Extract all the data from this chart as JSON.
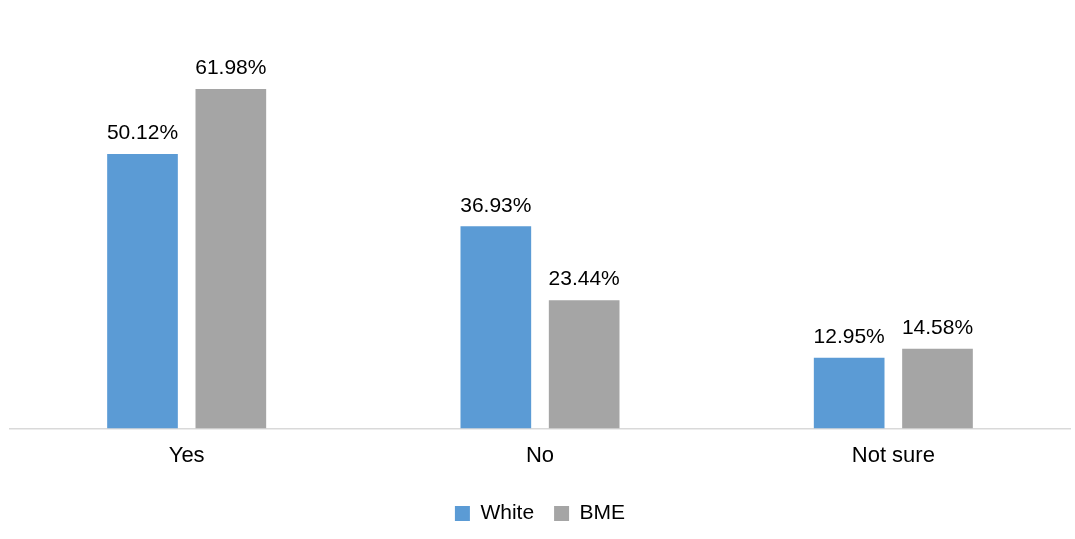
{
  "chart_data": {
    "type": "bar",
    "categories": [
      "Yes",
      "No",
      "Not sure"
    ],
    "series": [
      {
        "name": "White",
        "color": "#5b9bd5",
        "values": [
          50.12,
          36.93,
          12.95
        ],
        "value_labels": [
          "50.12%",
          "36.93%",
          "12.95%"
        ]
      },
      {
        "name": "BME",
        "color": "#a5a5a5",
        "values": [
          61.98,
          23.44,
          14.58
        ],
        "value_labels": [
          "61.98%",
          "23.44%",
          "14.58%"
        ]
      }
    ],
    "grid": false,
    "legend": "bottom"
  }
}
